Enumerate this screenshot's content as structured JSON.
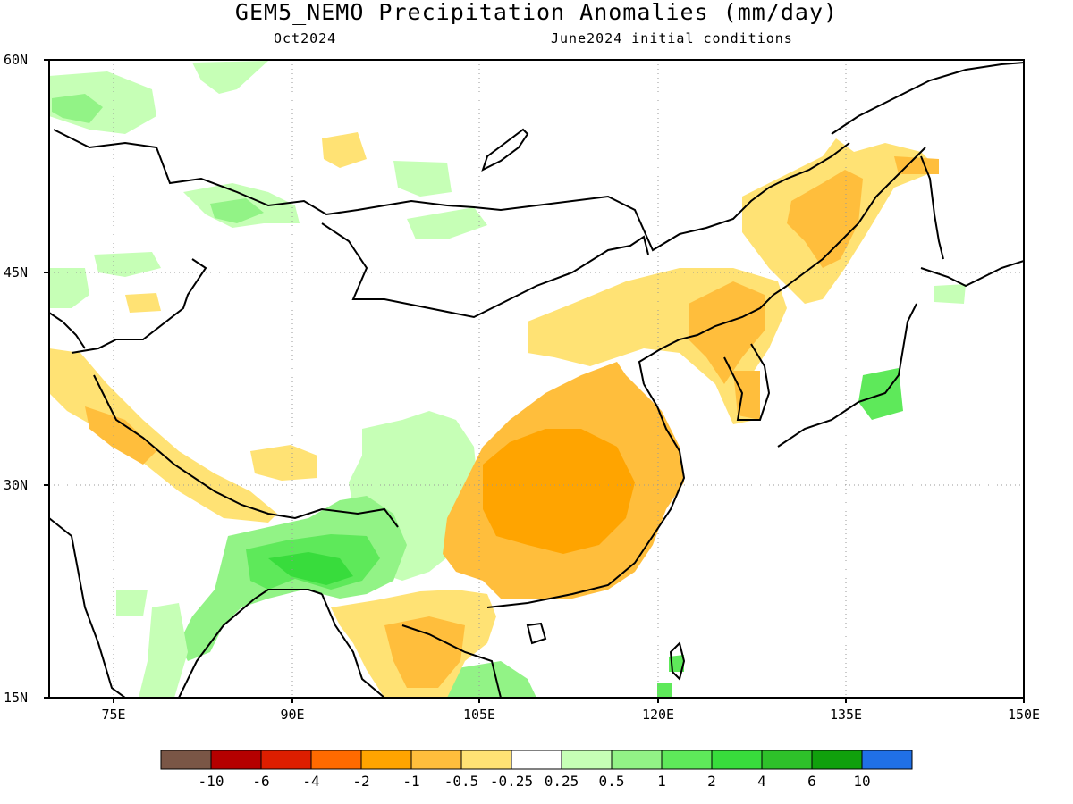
{
  "title": "GEM5_NEMO Precipitation Anomalies (mm/day)",
  "subtitle_left": "Oct2024",
  "subtitle_right": "June2024 initial conditions",
  "lat_ticks": [
    "60N",
    "45N",
    "30N",
    "15N"
  ],
  "lon_ticks": [
    "75E",
    "90E",
    "105E",
    "120E",
    "135E",
    "150E"
  ],
  "legend": {
    "labels": [
      "-10",
      "-6",
      "-4",
      "-2",
      "-1",
      "-0.5",
      "-0.25",
      "0.25",
      "0.5",
      "1",
      "2",
      "4",
      "6",
      "10"
    ],
    "colors": [
      "#7a5646",
      "#b50000",
      "#dd1e00",
      "#ff6a00",
      "#ffa400",
      "#ffbe3c",
      "#ffe274",
      "#ffffff",
      "#c6ffb6",
      "#92f386",
      "#5ee95a",
      "#38dc3c",
      "#2ec12a",
      "#10a00c",
      "#2070e6"
    ]
  },
  "colors": {
    "dry_light": "#ffe274",
    "dry_mid": "#ffbe3c",
    "dry_strong": "#ffa400",
    "wet_light": "#c6ffb6",
    "wet_mid": "#92f386",
    "wet_strong": "#5ee95a",
    "wet_stronger": "#38dc3c"
  }
}
